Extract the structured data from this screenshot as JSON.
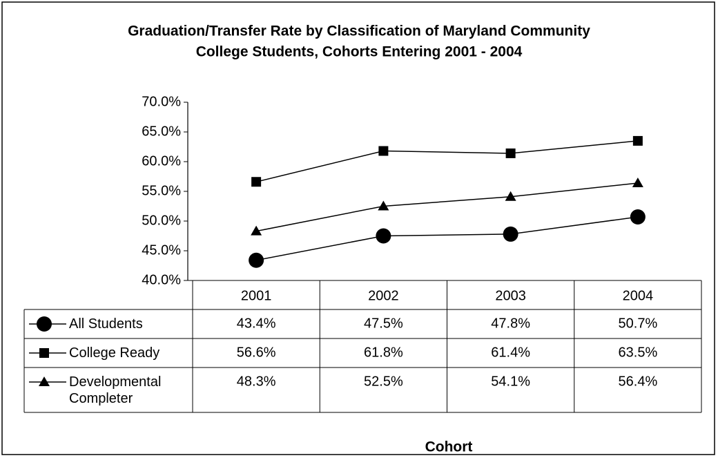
{
  "chart_data": {
    "type": "line",
    "title": [
      "Graduation/Transfer Rate by Classification of Maryland Community",
      "College Students, Cohorts Entering 2001 - 2004"
    ],
    "xlabel": "Cohort",
    "categories": [
      "2001",
      "2002",
      "2003",
      "2004"
    ],
    "series": [
      {
        "name": "All Students",
        "color": "#000000",
        "marker": "circle",
        "values": [
          43.4,
          47.5,
          47.8,
          50.7
        ],
        "value_labels": [
          "43.4%",
          "47.5%",
          "47.8%",
          "50.7%"
        ]
      },
      {
        "name": "College Ready",
        "color": "#000000",
        "marker": "square",
        "values": [
          56.6,
          61.8,
          61.4,
          63.5
        ],
        "value_labels": [
          "56.6%",
          "61.8%",
          "61.4%",
          "63.5%"
        ]
      },
      {
        "name": "Developmental Completer",
        "color": "#000000",
        "marker": "triangle",
        "values": [
          48.3,
          52.5,
          54.1,
          56.4
        ],
        "value_labels": [
          "48.3%",
          "52.5%",
          "54.1%",
          "56.4%"
        ]
      }
    ],
    "ylim": [
      40,
      70
    ],
    "yticks": [
      {
        "value": 40,
        "label": "40.0%"
      },
      {
        "value": 45,
        "label": "45.0%"
      },
      {
        "value": 50,
        "label": "50.0%"
      },
      {
        "value": 55,
        "label": "55.0%"
      },
      {
        "value": 60,
        "label": "60.0%"
      },
      {
        "value": 65,
        "label": "65.0%"
      },
      {
        "value": 70,
        "label": "70.0%"
      }
    ],
    "grid": false
  }
}
